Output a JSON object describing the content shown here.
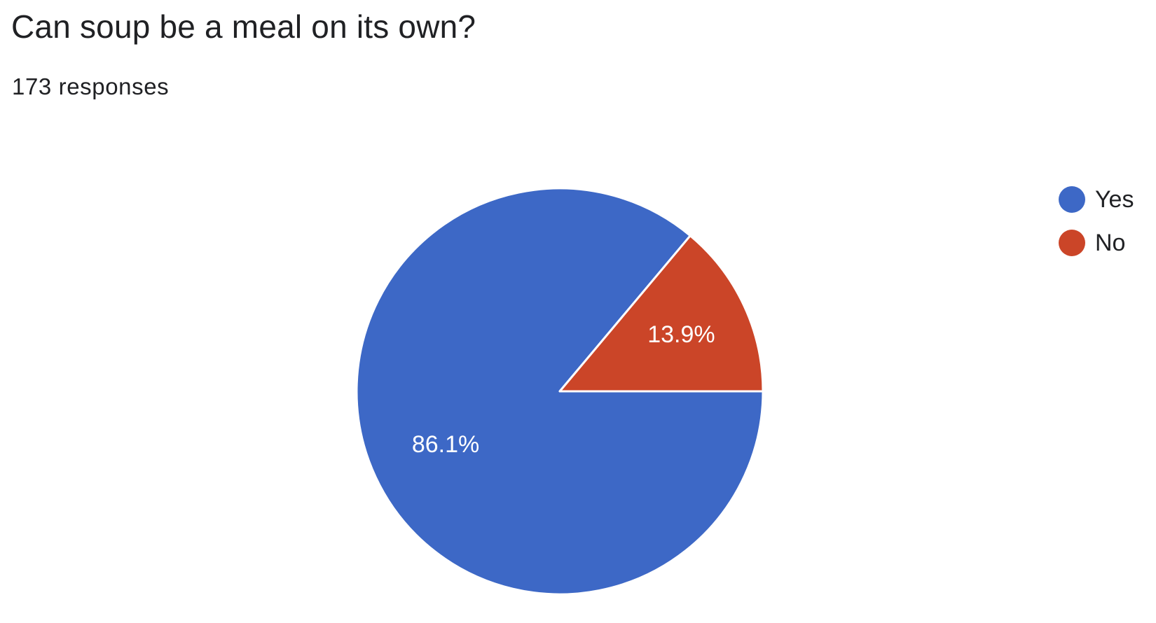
{
  "question": {
    "title": "Can soup be a meal on its own?",
    "response_count": "173 responses"
  },
  "colors": {
    "yes": "#3d68c6",
    "no": "#cb4528",
    "slice_border": "#ffffff"
  },
  "chart_data": {
    "type": "pie",
    "title": "Can soup be a meal on its own?",
    "total_responses": 173,
    "legend_placement": "right",
    "slices": [
      {
        "label": "Yes",
        "value": 86.1,
        "display": "86.1%",
        "color": "#3d68c6"
      },
      {
        "label": "No",
        "value": 13.9,
        "display": "13.9%",
        "color": "#cb4528"
      }
    ]
  }
}
